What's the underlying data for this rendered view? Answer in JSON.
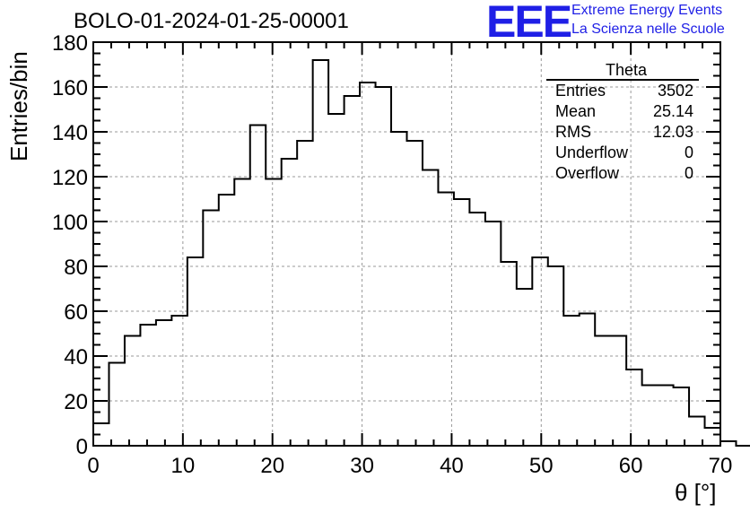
{
  "header": {
    "run_title": "BOLO-01-2024-01-25-00001",
    "logo_text": "EEE",
    "logo_line1": "Extreme Energy Events",
    "logo_line2": "La Scienza nelle Scuole",
    "brand_color": "#1f1fe6"
  },
  "stats_box": {
    "title": "Theta",
    "rows": [
      {
        "label": "Entries",
        "value": "3502"
      },
      {
        "label": "Mean",
        "value": "25.14"
      },
      {
        "label": "RMS",
        "value": "12.03"
      },
      {
        "label": "Underflow",
        "value": "0"
      },
      {
        "label": "Overflow",
        "value": "0"
      }
    ]
  },
  "chart_data": {
    "type": "bar",
    "histogram": true,
    "title": "BOLO-01-2024-01-25-00001",
    "xlabel": "θ [°]",
    "ylabel": "Entries/bin",
    "xlim": [
      0,
      70
    ],
    "ylim": [
      0,
      180
    ],
    "grid": true,
    "bin_width": 1.75,
    "x_ticks": [
      "0",
      "10",
      "20",
      "30",
      "40",
      "50",
      "60",
      "70"
    ],
    "y_ticks": [
      "0",
      "20",
      "40",
      "60",
      "80",
      "100",
      "120",
      "140",
      "160",
      "180"
    ],
    "bin_edges_start": 0,
    "values": [
      10,
      37,
      49,
      54,
      56,
      58,
      84,
      105,
      112,
      119,
      143,
      119,
      128,
      136,
      172,
      148,
      156,
      162,
      160,
      140,
      136,
      123,
      113,
      110,
      104,
      100,
      82,
      70,
      84,
      80,
      58,
      59,
      49,
      49,
      34,
      27,
      27,
      26,
      13,
      8,
      2,
      0,
      0,
      0,
      0,
      0,
      0,
      0,
      0,
      0
    ]
  }
}
